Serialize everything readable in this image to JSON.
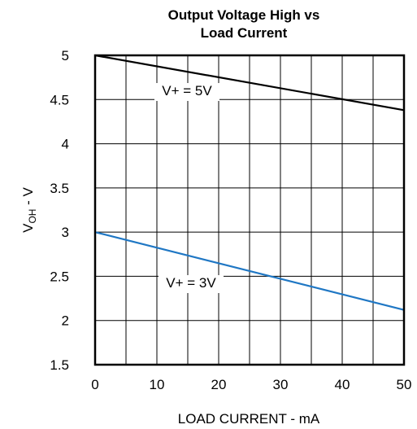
{
  "chart_data": {
    "type": "line",
    "title_lines": [
      "Output Voltage High vs",
      "Load Current"
    ],
    "xlabel": "LOAD CURRENT - mA",
    "ylabel": {
      "main": "V",
      "subscript": "OH",
      "suffix": " - V"
    },
    "xlim": [
      0,
      50
    ],
    "ylim": [
      1.5,
      5
    ],
    "x_ticks": [
      "0",
      "10",
      "20",
      "30",
      "40",
      "50"
    ],
    "y_ticks": [
      "5",
      "4.5",
      "4",
      "3.5",
      "3",
      "2.5",
      "2",
      "1.5"
    ],
    "grid": true,
    "series": [
      {
        "name": "V+ = 5V",
        "color": "#000000",
        "x": [
          0,
          50
        ],
        "y": [
          5.0,
          4.38
        ]
      },
      {
        "name": "V+ = 3V",
        "color": "#1f77c4",
        "x": [
          0,
          50
        ],
        "y": [
          3.0,
          2.12
        ]
      }
    ]
  }
}
